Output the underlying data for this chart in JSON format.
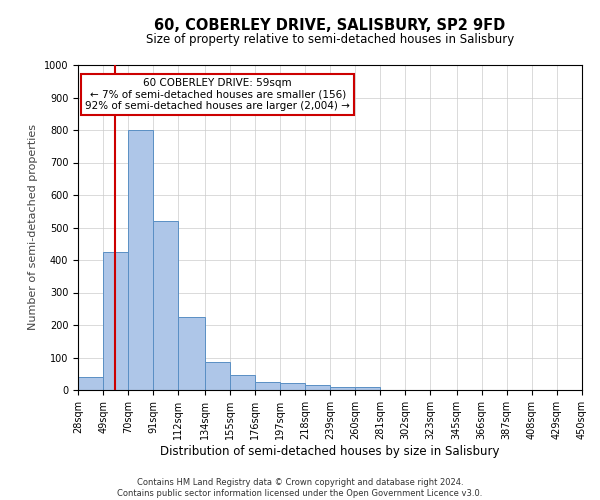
{
  "title": "60, COBERLEY DRIVE, SALISBURY, SP2 9FD",
  "subtitle": "Size of property relative to semi-detached houses in Salisbury",
  "xlabel": "Distribution of semi-detached houses by size in Salisbury",
  "ylabel": "Number of semi-detached properties",
  "footer_line1": "Contains HM Land Registry data © Crown copyright and database right 2024.",
  "footer_line2": "Contains public sector information licensed under the Open Government Licence v3.0.",
  "annotation_title": "60 COBERLEY DRIVE: 59sqm",
  "annotation_line2": "← 7% of semi-detached houses are smaller (156)",
  "annotation_line3": "92% of semi-detached houses are larger (2,004) →",
  "property_size": 59,
  "bar_labels": [
    "28sqm",
    "49sqm",
    "70sqm",
    "91sqm",
    "112sqm",
    "134sqm",
    "155sqm",
    "176sqm",
    "197sqm",
    "218sqm",
    "239sqm",
    "260sqm",
    "281sqm",
    "302sqm",
    "323sqm",
    "345sqm",
    "366sqm",
    "387sqm",
    "408sqm",
    "429sqm",
    "450sqm"
  ],
  "bar_values": [
    40,
    425,
    800,
    520,
    225,
    85,
    45,
    25,
    22,
    15,
    10,
    10,
    0,
    0,
    0,
    0,
    0,
    0,
    0,
    0,
    0
  ],
  "bar_edges": [
    28,
    49,
    70,
    91,
    112,
    134,
    155,
    176,
    197,
    218,
    239,
    260,
    281,
    302,
    323,
    345,
    366,
    387,
    408,
    429,
    450
  ],
  "bar_color": "#aec6e8",
  "bar_edgecolor": "#5a8fc4",
  "vline_x": 59,
  "vline_color": "#cc0000",
  "ylim": [
    0,
    1000
  ],
  "yticks": [
    0,
    100,
    200,
    300,
    400,
    500,
    600,
    700,
    800,
    900,
    1000
  ],
  "grid_color": "#cccccc",
  "bg_color": "#ffffff",
  "annotation_box_edgecolor": "#cc0000",
  "annotation_box_facecolor": "#ffffff"
}
